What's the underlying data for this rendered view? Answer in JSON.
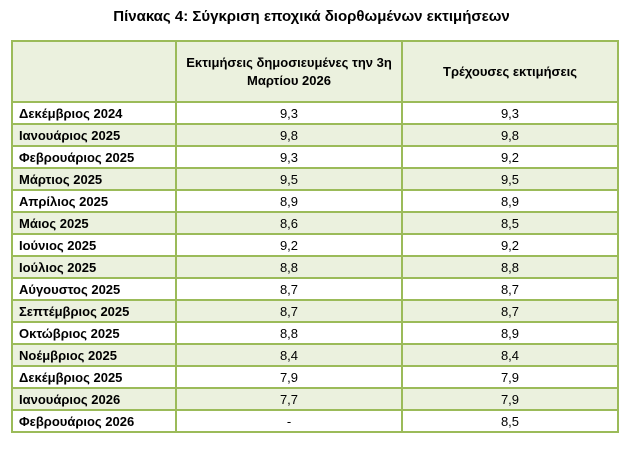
{
  "title": "Πίνακας 4: Σύγκριση εποχικά διορθωμένων εκτιμήσεων",
  "colors": {
    "border": "#9bbb59",
    "band": "#ebf1de"
  },
  "columns": [
    "",
    "Εκτιμήσεις δημοσιευμένες την 3η Μαρτίου 2026",
    "Τρέχουσες εκτιμήσεις"
  ],
  "rows": [
    {
      "month": "Δεκέμβριος 2024",
      "published": "9,3",
      "current": "9,3"
    },
    {
      "month": "Ιανουάριος 2025",
      "published": "9,8",
      "current": "9,8"
    },
    {
      "month": "Φεβρουάριος 2025",
      "published": "9,3",
      "current": "9,2"
    },
    {
      "month": "Μάρτιος 2025",
      "published": "9,5",
      "current": "9,5"
    },
    {
      "month": "Απρίλιος 2025",
      "published": "8,9",
      "current": "8,9"
    },
    {
      "month": "Μάιος 2025",
      "published": "8,6",
      "current": "8,5"
    },
    {
      "month": "Ιούνιος 2025",
      "published": "9,2",
      "current": "9,2"
    },
    {
      "month": "Ιούλιος 2025",
      "published": "8,8",
      "current": "8,8"
    },
    {
      "month": "Αύγουστος 2025",
      "published": "8,7",
      "current": "8,7"
    },
    {
      "month": "Σεπτέμβριος 2025",
      "published": "8,7",
      "current": "8,7"
    },
    {
      "month": "Οκτώβριος 2025",
      "published": "8,8",
      "current": "8,9"
    },
    {
      "month": "Νοέμβριος 2025",
      "published": "8,4",
      "current": "8,4"
    },
    {
      "month": "Δεκέμβριος 2025",
      "published": "7,9",
      "current": "7,9"
    },
    {
      "month": "Ιανουάριος 2026",
      "published": "7,7",
      "current": "7,9"
    },
    {
      "month": "Φεβρουάριος 2026",
      "published": "-",
      "current": "8,5"
    }
  ]
}
